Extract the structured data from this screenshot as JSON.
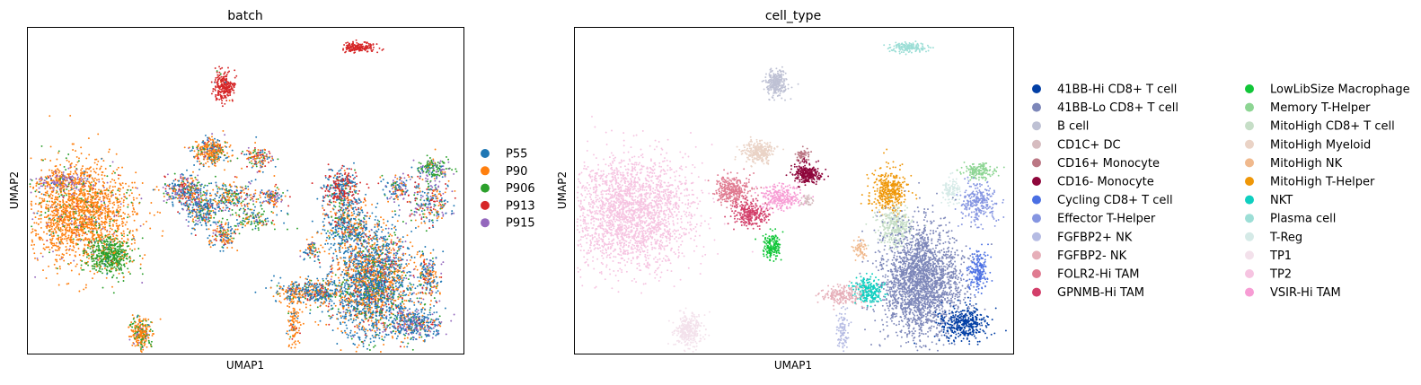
{
  "chart_data": [
    {
      "type": "scatter",
      "title": "batch",
      "xlabel": "UMAP1",
      "ylabel": "UMAP2",
      "grid": false,
      "legend": {
        "placement": "right",
        "columns": 1
      },
      "series": [
        {
          "name": "P55",
          "color": "#1f77b4"
        },
        {
          "name": "P90",
          "color": "#ff7f0e"
        },
        {
          "name": "P906",
          "color": "#2ca02c"
        },
        {
          "name": "P913",
          "color": "#d62728"
        },
        {
          "name": "P915",
          "color": "#9467bd"
        }
      ],
      "clusters": [
        {
          "cx": 0.12,
          "cy": 0.57,
          "sx": 0.06,
          "sy": 0.075,
          "n": 1900,
          "mix": [
            0.01,
            0.86,
            0.08,
            0.01,
            0.04
          ]
        },
        {
          "cx": 0.19,
          "cy": 0.7,
          "sx": 0.025,
          "sy": 0.03,
          "n": 450,
          "mix": [
            0.02,
            0.08,
            0.88,
            0.01,
            0.01
          ]
        },
        {
          "cx": 0.08,
          "cy": 0.47,
          "sx": 0.03,
          "sy": 0.015,
          "n": 160,
          "mix": [
            0.1,
            0.3,
            0.05,
            0.05,
            0.5
          ]
        },
        {
          "cx": 0.26,
          "cy": 0.94,
          "sx": 0.013,
          "sy": 0.025,
          "n": 260,
          "mix": [
            0.05,
            0.7,
            0.2,
            0.0,
            0.05
          ]
        },
        {
          "cx": 0.45,
          "cy": 0.18,
          "sx": 0.012,
          "sy": 0.022,
          "n": 260,
          "mix": [
            0.01,
            0.03,
            0.01,
            0.95,
            0.0
          ]
        },
        {
          "cx": 0.76,
          "cy": 0.06,
          "sx": 0.02,
          "sy": 0.007,
          "n": 170,
          "mix": [
            0.0,
            0.0,
            0.0,
            1.0,
            0.0
          ]
        },
        {
          "cx": 0.42,
          "cy": 0.38,
          "sx": 0.02,
          "sy": 0.02,
          "n": 320,
          "mix": [
            0.2,
            0.6,
            0.1,
            0.05,
            0.05
          ]
        },
        {
          "cx": 0.53,
          "cy": 0.4,
          "sx": 0.015,
          "sy": 0.018,
          "n": 130,
          "mix": [
            0.2,
            0.4,
            0.1,
            0.2,
            0.1
          ]
        },
        {
          "cx": 0.36,
          "cy": 0.5,
          "sx": 0.025,
          "sy": 0.022,
          "n": 320,
          "mix": [
            0.3,
            0.2,
            0.1,
            0.1,
            0.3
          ]
        },
        {
          "cx": 0.4,
          "cy": 0.56,
          "sx": 0.022,
          "sy": 0.028,
          "n": 280,
          "mix": [
            0.5,
            0.2,
            0.1,
            0.05,
            0.15
          ]
        },
        {
          "cx": 0.47,
          "cy": 0.52,
          "sx": 0.03,
          "sy": 0.022,
          "n": 220,
          "mix": [
            0.3,
            0.3,
            0.2,
            0.1,
            0.1
          ]
        },
        {
          "cx": 0.45,
          "cy": 0.64,
          "sx": 0.015,
          "sy": 0.02,
          "n": 150,
          "mix": [
            0.3,
            0.4,
            0.1,
            0.1,
            0.1
          ]
        },
        {
          "cx": 0.56,
          "cy": 0.52,
          "sx": 0.015,
          "sy": 0.015,
          "n": 110,
          "mix": [
            0.2,
            0.3,
            0.1,
            0.1,
            0.3
          ]
        },
        {
          "cx": 0.52,
          "cy": 0.59,
          "sx": 0.03,
          "sy": 0.015,
          "n": 120,
          "mix": [
            0.2,
            0.3,
            0.4,
            0.05,
            0.05
          ]
        },
        {
          "cx": 0.72,
          "cy": 0.49,
          "sx": 0.02,
          "sy": 0.03,
          "n": 320,
          "mix": [
            0.45,
            0.05,
            0.05,
            0.45,
            0.0
          ]
        },
        {
          "cx": 0.73,
          "cy": 0.6,
          "sx": 0.025,
          "sy": 0.04,
          "n": 380,
          "mix": [
            0.55,
            0.25,
            0.1,
            0.1,
            0.0
          ]
        },
        {
          "cx": 0.85,
          "cy": 0.49,
          "sx": 0.015,
          "sy": 0.02,
          "n": 120,
          "mix": [
            0.3,
            0.2,
            0.1,
            0.1,
            0.3
          ]
        },
        {
          "cx": 0.92,
          "cy": 0.53,
          "sx": 0.025,
          "sy": 0.035,
          "n": 260,
          "mix": [
            0.3,
            0.2,
            0.1,
            0.2,
            0.2
          ]
        },
        {
          "cx": 0.93,
          "cy": 0.43,
          "sx": 0.02,
          "sy": 0.015,
          "n": 150,
          "mix": [
            0.2,
            0.1,
            0.5,
            0.0,
            0.2
          ]
        },
        {
          "cx": 0.79,
          "cy": 0.78,
          "sx": 0.045,
          "sy": 0.085,
          "n": 2300,
          "mix": [
            0.5,
            0.3,
            0.1,
            0.05,
            0.05
          ]
        },
        {
          "cx": 0.89,
          "cy": 0.91,
          "sx": 0.03,
          "sy": 0.025,
          "n": 380,
          "mix": [
            0.5,
            0.1,
            0.05,
            0.05,
            0.3
          ]
        },
        {
          "cx": 0.92,
          "cy": 0.77,
          "sx": 0.015,
          "sy": 0.035,
          "n": 200,
          "mix": [
            0.4,
            0.3,
            0.1,
            0.1,
            0.1
          ]
        },
        {
          "cx": 0.62,
          "cy": 0.81,
          "sx": 0.03,
          "sy": 0.018,
          "n": 230,
          "mix": [
            0.4,
            0.4,
            0.1,
            0.05,
            0.05
          ]
        },
        {
          "cx": 0.67,
          "cy": 0.81,
          "sx": 0.02,
          "sy": 0.02,
          "n": 200,
          "mix": [
            0.6,
            0.2,
            0.1,
            0.05,
            0.05
          ]
        },
        {
          "cx": 0.61,
          "cy": 0.91,
          "sx": 0.008,
          "sy": 0.04,
          "n": 110,
          "mix": [
            0.1,
            0.8,
            0.05,
            0.05,
            0.0
          ]
        },
        {
          "cx": 0.65,
          "cy": 0.68,
          "sx": 0.01,
          "sy": 0.018,
          "n": 70,
          "mix": [
            0.4,
            0.4,
            0.1,
            0.05,
            0.05
          ]
        }
      ]
    },
    {
      "type": "scatter",
      "title": "cell_type",
      "xlabel": "UMAP1",
      "ylabel": "UMAP2",
      "grid": false,
      "legend": {
        "placement": "right",
        "columns": 2
      },
      "series": [
        {
          "name": "41BB-Hi CD8+ T cell",
          "color": "#023fa5"
        },
        {
          "name": "41BB-Lo CD8+ T cell",
          "color": "#7d87b9"
        },
        {
          "name": "B cell",
          "color": "#bec1d4"
        },
        {
          "name": "CD1C+ DC",
          "color": "#d6bcc0"
        },
        {
          "name": "CD16+ Monocyte",
          "color": "#bb7784"
        },
        {
          "name": "CD16- Monocyte",
          "color": "#8e063b"
        },
        {
          "name": "Cycling CD8+ T cell",
          "color": "#4a6fe3"
        },
        {
          "name": "Effector T-Helper",
          "color": "#8595e1"
        },
        {
          "name": "FGFBP2+ NK",
          "color": "#b5bbe3"
        },
        {
          "name": "FGFBP2- NK",
          "color": "#e6afb9"
        },
        {
          "name": "FOLR2-Hi TAM",
          "color": "#e07b91"
        },
        {
          "name": "GPNMB-Hi TAM",
          "color": "#d33f6a"
        },
        {
          "name": "LowLibSize Macrophage",
          "color": "#11c638"
        },
        {
          "name": "Memory T-Helper",
          "color": "#8dd593"
        },
        {
          "name": "MitoHigh CD8+ T cell",
          "color": "#c6dec7"
        },
        {
          "name": "MitoHigh Myeloid",
          "color": "#ead3c6"
        },
        {
          "name": "MitoHigh NK",
          "color": "#f0b98d"
        },
        {
          "name": "MitoHigh T-Helper",
          "color": "#ef9708"
        },
        {
          "name": "NKT",
          "color": "#0fcfc0"
        },
        {
          "name": "Plasma cell",
          "color": "#9cded6"
        },
        {
          "name": "T-Reg",
          "color": "#d5eae7"
        },
        {
          "name": "TP1",
          "color": "#f3e1eb"
        },
        {
          "name": "TP2",
          "color": "#f6c4e1"
        },
        {
          "name": "VSIR-Hi TAM",
          "color": "#f79cd4"
        }
      ],
      "clusters": [
        {
          "cx": 0.13,
          "cy": 0.57,
          "sx": 0.07,
          "sy": 0.085,
          "n": 2300,
          "c": 22
        },
        {
          "cx": 0.26,
          "cy": 0.93,
          "sx": 0.015,
          "sy": 0.025,
          "n": 320,
          "c": 21
        },
        {
          "cx": 0.46,
          "cy": 0.17,
          "sx": 0.012,
          "sy": 0.02,
          "n": 260,
          "c": 2
        },
        {
          "cx": 0.76,
          "cy": 0.06,
          "sx": 0.02,
          "sy": 0.007,
          "n": 170,
          "c": 19
        },
        {
          "cx": 0.42,
          "cy": 0.38,
          "sx": 0.018,
          "sy": 0.018,
          "n": 300,
          "c": 15
        },
        {
          "cx": 0.52,
          "cy": 0.39,
          "sx": 0.008,
          "sy": 0.01,
          "n": 60,
          "c": 4
        },
        {
          "cx": 0.53,
          "cy": 0.45,
          "sx": 0.016,
          "sy": 0.016,
          "n": 260,
          "c": 5
        },
        {
          "cx": 0.36,
          "cy": 0.5,
          "sx": 0.02,
          "sy": 0.022,
          "n": 320,
          "c": 10
        },
        {
          "cx": 0.4,
          "cy": 0.57,
          "sx": 0.02,
          "sy": 0.022,
          "n": 260,
          "c": 11
        },
        {
          "cx": 0.47,
          "cy": 0.52,
          "sx": 0.025,
          "sy": 0.02,
          "n": 260,
          "c": 23
        },
        {
          "cx": 0.45,
          "cy": 0.67,
          "sx": 0.01,
          "sy": 0.02,
          "n": 160,
          "c": 12
        },
        {
          "cx": 0.53,
          "cy": 0.53,
          "sx": 0.007,
          "sy": 0.01,
          "n": 40,
          "c": 3
        },
        {
          "cx": 0.72,
          "cy": 0.5,
          "sx": 0.02,
          "sy": 0.035,
          "n": 380,
          "c": 17
        },
        {
          "cx": 0.73,
          "cy": 0.61,
          "sx": 0.02,
          "sy": 0.03,
          "n": 300,
          "c": 14
        },
        {
          "cx": 0.92,
          "cy": 0.44,
          "sx": 0.018,
          "sy": 0.012,
          "n": 150,
          "c": 13
        },
        {
          "cx": 0.92,
          "cy": 0.54,
          "sx": 0.02,
          "sy": 0.03,
          "n": 260,
          "c": 7
        },
        {
          "cx": 0.86,
          "cy": 0.5,
          "sx": 0.012,
          "sy": 0.02,
          "n": 100,
          "c": 20
        },
        {
          "cx": 0.79,
          "cy": 0.78,
          "sx": 0.045,
          "sy": 0.085,
          "n": 2300,
          "c": 1
        },
        {
          "cx": 0.89,
          "cy": 0.91,
          "sx": 0.03,
          "sy": 0.025,
          "n": 380,
          "c": 0
        },
        {
          "cx": 0.92,
          "cy": 0.75,
          "sx": 0.012,
          "sy": 0.03,
          "n": 180,
          "c": 6
        },
        {
          "cx": 0.67,
          "cy": 0.81,
          "sx": 0.018,
          "sy": 0.02,
          "n": 240,
          "c": 18
        },
        {
          "cx": 0.61,
          "cy": 0.82,
          "sx": 0.025,
          "sy": 0.015,
          "n": 200,
          "c": 9
        },
        {
          "cx": 0.61,
          "cy": 0.93,
          "sx": 0.007,
          "sy": 0.035,
          "n": 100,
          "c": 8
        },
        {
          "cx": 0.65,
          "cy": 0.68,
          "sx": 0.008,
          "sy": 0.015,
          "n": 60,
          "c": 16
        }
      ]
    }
  ]
}
